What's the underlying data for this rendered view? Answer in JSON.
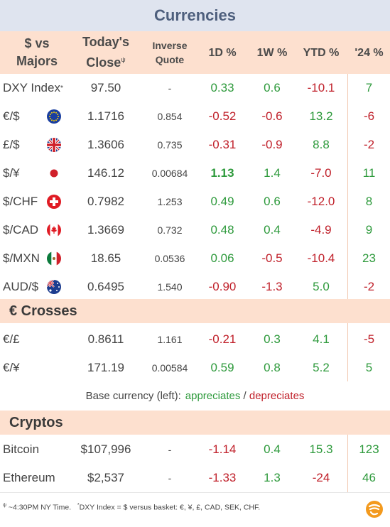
{
  "title": "Currencies",
  "header": {
    "pair_line1": "$ vs",
    "pair_line2": "Majors",
    "close_line1": "Today's",
    "close_line2": "Close",
    "close_mark": "ψ",
    "inv_line1": "Inverse",
    "inv_line2": "Quote",
    "d1": "1D %",
    "w1": "1W %",
    "ytd": "YTD %",
    "y24": "'24 %"
  },
  "majors": [
    {
      "name": "DXY Index",
      "mark": "*",
      "flag": "",
      "close": "97.50",
      "inverse": "-",
      "d1": "0.33",
      "w1": "0.6",
      "ytd": "-10.1",
      "y24": "7"
    },
    {
      "name": "€/$",
      "mark": "",
      "flag": "eu",
      "close": "1.1716",
      "inverse": "0.854",
      "d1": "-0.52",
      "w1": "-0.6",
      "ytd": "13.2",
      "y24": "-6"
    },
    {
      "name": "£/$",
      "mark": "",
      "flag": "uk",
      "close": "1.3606",
      "inverse": "0.735",
      "d1": "-0.31",
      "w1": "-0.9",
      "ytd": "8.8",
      "y24": "-2"
    },
    {
      "name": "$/¥",
      "mark": "",
      "flag": "jp",
      "close": "146.12",
      "inverse": "0.00684",
      "d1": "1.13",
      "w1": "1.4",
      "ytd": "-7.0",
      "y24": "11"
    },
    {
      "name": "$/CHF",
      "mark": "",
      "flag": "ch",
      "close": "0.7982",
      "inverse": "1.253",
      "d1": "0.49",
      "w1": "0.6",
      "ytd": "-12.0",
      "y24": "8"
    },
    {
      "name": "$/CAD",
      "mark": "",
      "flag": "ca",
      "close": "1.3669",
      "inverse": "0.732",
      "d1": "0.48",
      "w1": "0.4",
      "ytd": "-4.9",
      "y24": "9"
    },
    {
      "name": "$/MXN",
      "mark": "",
      "flag": "mx",
      "close": "18.65",
      "inverse": "0.0536",
      "d1": "0.06",
      "w1": "-0.5",
      "ytd": "-10.4",
      "y24": "23"
    },
    {
      "name": "AUD/$",
      "mark": "",
      "flag": "au",
      "close": "0.6495",
      "inverse": "1.540",
      "d1": "-0.90",
      "w1": "-1.3",
      "ytd": "5.0",
      "y24": "-2"
    }
  ],
  "crosses_title": "€ Crosses",
  "crosses": [
    {
      "name": "€/£",
      "mark": "",
      "flag": "",
      "close": "0.8611",
      "inverse": "1.161",
      "d1": "-0.21",
      "w1": "0.3",
      "ytd": "4.1",
      "y24": "-5"
    },
    {
      "name": "€/¥",
      "mark": "",
      "flag": "",
      "close": "171.19",
      "inverse": "0.00584",
      "d1": "0.59",
      "w1": "0.8",
      "ytd": "5.2",
      "y24": "5"
    }
  ],
  "legend": {
    "prefix": "Base currency (left):",
    "appreciates": "appreciates",
    "sep": " / ",
    "depreciates": "depreciates"
  },
  "cryptos_title": "Cryptos",
  "cryptos": [
    {
      "name": "Bitcoin",
      "mark": "",
      "flag": "",
      "close": "$107,996",
      "inverse": "-",
      "d1": "-1.14",
      "w1": "0.4",
      "ytd": "15.3",
      "y24": "123"
    },
    {
      "name": "Ethereum",
      "mark": "",
      "flag": "",
      "close": "$2,537",
      "inverse": "-",
      "d1": "-1.33",
      "w1": "1.3",
      "ytd": "-24",
      "y24": "46"
    }
  ],
  "footnote": {
    "mark1": "ψ",
    "text1": " ~4:30PM NY Time.",
    "mark2": "*",
    "text2": "DXY Index = $ versus basket: €, ¥, £, CAD, SEK, CHF."
  },
  "colors": {
    "positive": "#2e9a3c",
    "negative": "#c0202a",
    "header_bg": "#fde0cf",
    "title_bg": "#dfe4ef"
  },
  "bold_cells": [
    "majors.3.d1"
  ],
  "logo": "finance-brand-logo"
}
